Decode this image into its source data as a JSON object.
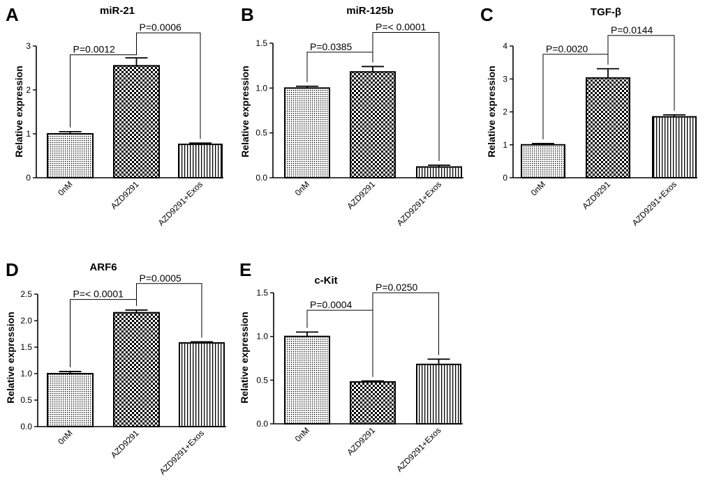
{
  "figure": {
    "colors": {
      "ink": "#000000",
      "background": "#ffffff"
    }
  },
  "chart_data": [
    {
      "panel": "A",
      "type": "bar",
      "title": "miR-21",
      "ylabel": "Relative expression",
      "xlabel": "",
      "categories": [
        "0nM",
        "AZD9291",
        "AZD9291+Exos"
      ],
      "values": [
        1.0,
        2.55,
        0.76
      ],
      "errors": [
        0.05,
        0.18,
        0.03
      ],
      "patterns": [
        "dots",
        "checker",
        "vlines"
      ],
      "ylim": [
        0,
        3
      ],
      "yticks": [
        0,
        1,
        2,
        3
      ],
      "ytick_labels": [
        "0",
        "1",
        "2",
        "3"
      ],
      "comparisons": [
        {
          "from": 0,
          "to": 1,
          "level": 2.8,
          "label": "P=0.0012"
        },
        {
          "from": 1,
          "to": 2,
          "level": 3.3,
          "label": "P=0.0006"
        }
      ]
    },
    {
      "panel": "B",
      "type": "bar",
      "title": "miR-125b",
      "ylabel": "Relative expression",
      "xlabel": "",
      "categories": [
        "0nM",
        "AZD9291",
        "AZD9291+Exos"
      ],
      "values": [
        1.0,
        1.18,
        0.12
      ],
      "errors": [
        0.02,
        0.06,
        0.02
      ],
      "patterns": [
        "dots",
        "checker",
        "vlines"
      ],
      "ylim": [
        0,
        1.5
      ],
      "yticks": [
        0,
        0.5,
        1,
        1.5
      ],
      "ytick_labels": [
        "0.0",
        "0.5",
        "1.0",
        "1.5"
      ],
      "comparisons": [
        {
          "from": 0,
          "to": 1,
          "level": 1.4,
          "label": "P=0.0385"
        },
        {
          "from": 1,
          "to": 2,
          "level": 1.62,
          "label": "P=< 0.0001"
        }
      ]
    },
    {
      "panel": "C",
      "type": "bar",
      "title": "TGF-β",
      "ylabel": "Relative expression",
      "xlabel": "",
      "categories": [
        "0nM",
        "AZD9291",
        "AZD9291+Exos"
      ],
      "values": [
        1.0,
        3.03,
        1.85
      ],
      "errors": [
        0.04,
        0.28,
        0.06
      ],
      "patterns": [
        "dots",
        "checker",
        "vlines"
      ],
      "ylim": [
        0,
        4
      ],
      "yticks": [
        0,
        1,
        2,
        3,
        4
      ],
      "ytick_labels": [
        "0",
        "1",
        "2",
        "3",
        "4"
      ],
      "comparisons": [
        {
          "from": 0,
          "to": 1,
          "level": 3.75,
          "label": "P=0.0020"
        },
        {
          "from": 1,
          "to": 2,
          "level": 4.32,
          "label": "P=0.0144"
        }
      ]
    },
    {
      "panel": "D",
      "type": "bar",
      "title": "ARF6",
      "ylabel": "Relative expression",
      "xlabel": "",
      "categories": [
        "0nM",
        "AZD9291",
        "AZD9291+Exos"
      ],
      "values": [
        1.0,
        2.15,
        1.58
      ],
      "errors": [
        0.04,
        0.05,
        0.02
      ],
      "patterns": [
        "dots",
        "checker",
        "vlines"
      ],
      "ylim": [
        0,
        2.5
      ],
      "yticks": [
        0,
        0.5,
        1,
        1.5,
        2,
        2.5
      ],
      "ytick_labels": [
        "0.0",
        "0.5",
        "1.0",
        "1.5",
        "2.0",
        "2.5"
      ],
      "comparisons": [
        {
          "from": 0,
          "to": 1,
          "level": 2.4,
          "label": "P=< 0.0001"
        },
        {
          "from": 1,
          "to": 2,
          "level": 2.7,
          "label": "P=0.0005"
        }
      ]
    },
    {
      "panel": "E",
      "type": "bar",
      "title": "c-Kit",
      "ylabel": "Relative expression",
      "xlabel": "",
      "categories": [
        "0nM",
        "AZD9291",
        "AZD9291+Exos"
      ],
      "values": [
        1.0,
        0.48,
        0.68
      ],
      "errors": [
        0.05,
        0.01,
        0.06
      ],
      "patterns": [
        "dots",
        "checker",
        "vlines"
      ],
      "ylim": [
        0,
        1.5
      ],
      "yticks": [
        0,
        0.5,
        1,
        1.5
      ],
      "ytick_labels": [
        "0.0",
        "0.5",
        "1.0",
        "1.5"
      ],
      "comparisons": [
        {
          "from": 1,
          "to": 0,
          "level": 1.3,
          "label": "P=0.0004"
        },
        {
          "from": 1,
          "to": 2,
          "level": 1.5,
          "label": "P=0.0250"
        }
      ]
    }
  ]
}
